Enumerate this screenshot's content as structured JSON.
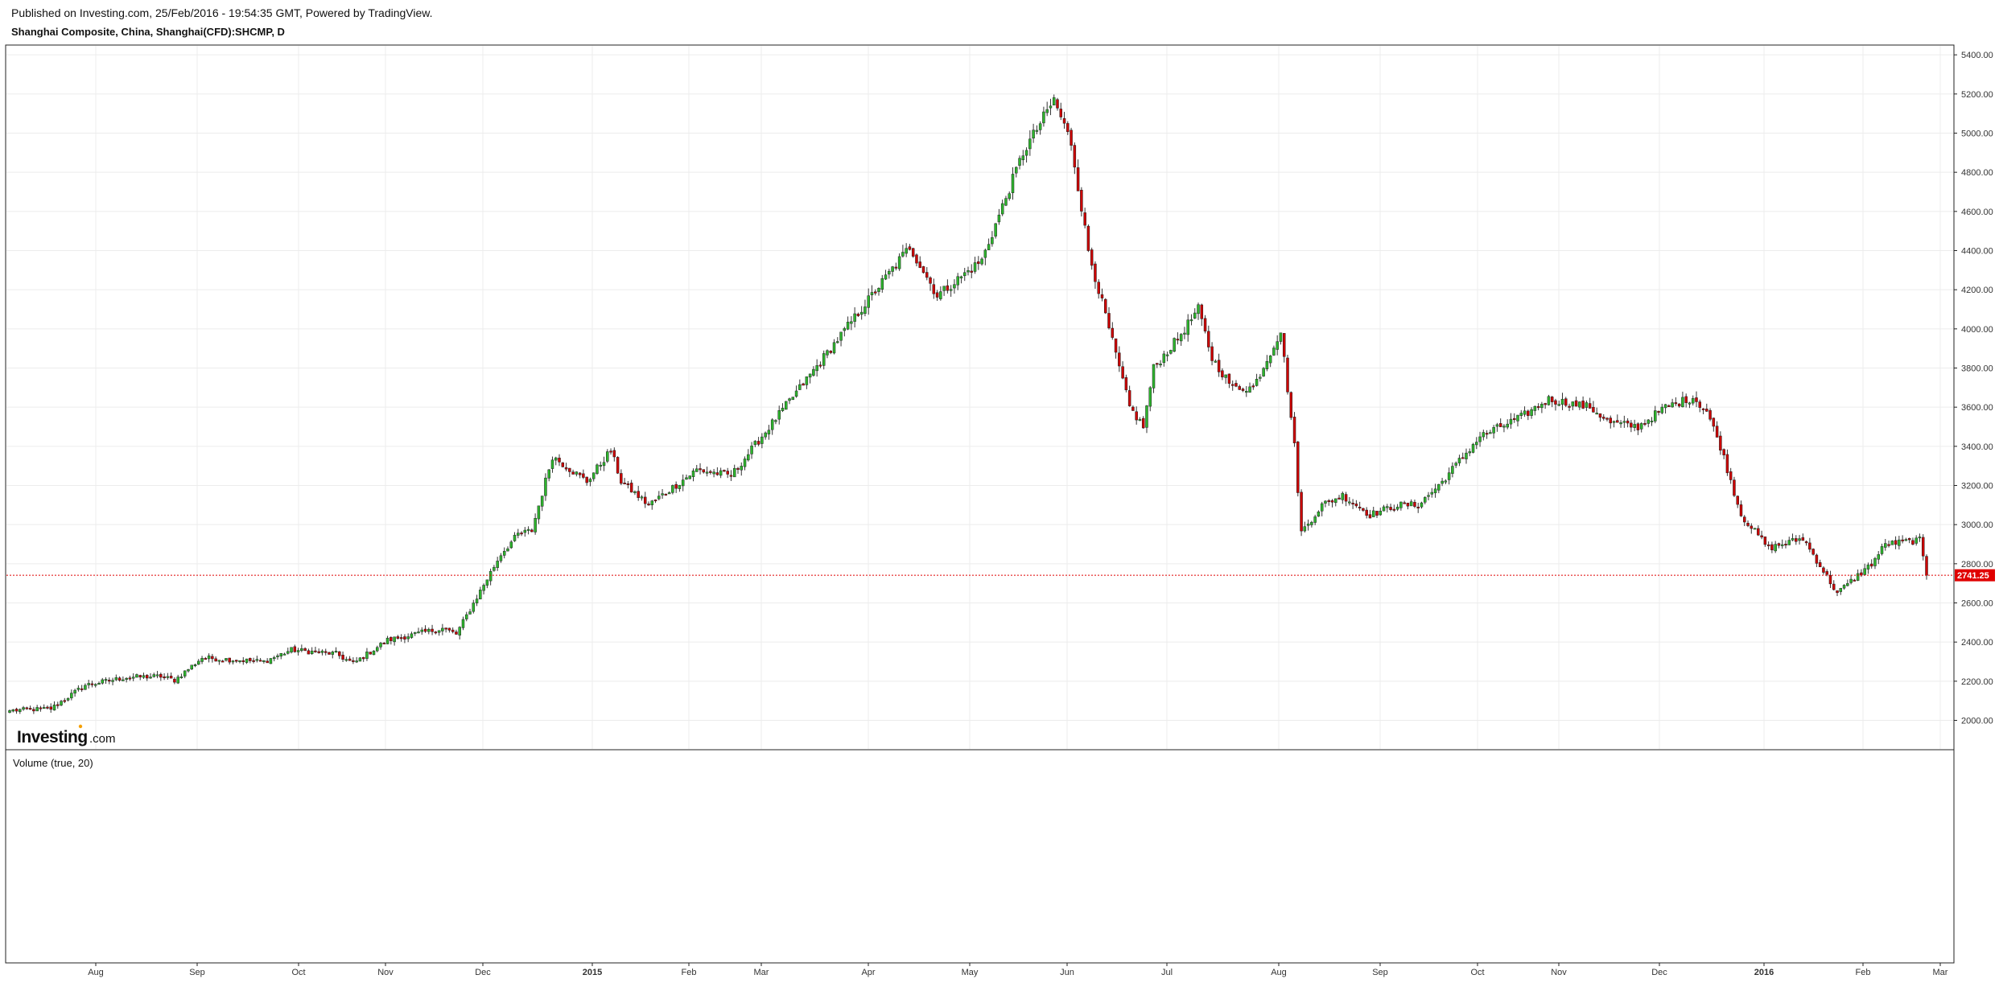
{
  "header": {
    "published": "Published on Investing.com, 25/Feb/2016 - 19:54:35 GMT, Powered by TradingView.",
    "symbol": "Shanghai Composite, China, Shanghai(CFD):SHCMP, D"
  },
  "logo": {
    "brand": "Investing",
    "suffix": ".com"
  },
  "volume_pane": {
    "title": "Volume (true, 20)"
  },
  "colors": {
    "up": "#2db52d",
    "down": "#cc0000",
    "last_line": "#e00000",
    "grid": "#ececec"
  },
  "chart_data": {
    "type": "candlestick",
    "title": "Shanghai Composite, China, Shanghai(CFD):SHCMP, D",
    "y_range": [
      1850,
      5450
    ],
    "y_ticks": [
      "2000.00",
      "2200.00",
      "2400.00",
      "2600.00",
      "2800.00",
      "3000.00",
      "3200.00",
      "3400.00",
      "3600.00",
      "3800.00",
      "4000.00",
      "4200.00",
      "4400.00",
      "4600.00",
      "4800.00",
      "5000.00",
      "5200.00",
      "5400.00"
    ],
    "x_ticks": [
      {
        "label": "Aug",
        "bold": false
      },
      {
        "label": "Sep",
        "bold": false
      },
      {
        "label": "Oct",
        "bold": false
      },
      {
        "label": "Nov",
        "bold": false
      },
      {
        "label": "Dec",
        "bold": false
      },
      {
        "label": "2015",
        "bold": true
      },
      {
        "label": "Feb",
        "bold": false
      },
      {
        "label": "Mar",
        "bold": false
      },
      {
        "label": "Apr",
        "bold": false
      },
      {
        "label": "May",
        "bold": false
      },
      {
        "label": "Jun",
        "bold": false
      },
      {
        "label": "Jul",
        "bold": false
      },
      {
        "label": "Aug",
        "bold": false
      },
      {
        "label": "Sep",
        "bold": false
      },
      {
        "label": "Oct",
        "bold": false
      },
      {
        "label": "Nov",
        "bold": false
      },
      {
        "label": "Dec",
        "bold": false
      },
      {
        "label": "2016",
        "bold": true
      },
      {
        "label": "Feb",
        "bold": false
      },
      {
        "label": "Mar",
        "bold": false
      }
    ],
    "last_price": "2741.25",
    "close_path": [
      [
        0,
        2050
      ],
      [
        12,
        2060
      ],
      [
        22,
        2180
      ],
      [
        34,
        2220
      ],
      [
        44,
        2225
      ],
      [
        48,
        2205
      ],
      [
        56,
        2320
      ],
      [
        74,
        2300
      ],
      [
        82,
        2360
      ],
      [
        95,
        2340
      ],
      [
        100,
        2290
      ],
      [
        110,
        2410
      ],
      [
        126,
        2470
      ],
      [
        130,
        2440
      ],
      [
        143,
        2850
      ],
      [
        148,
        2950
      ],
      [
        152,
        2970
      ],
      [
        158,
        3350
      ],
      [
        168,
        3220
      ],
      [
        175,
        3380
      ],
      [
        178,
        3220
      ],
      [
        186,
        3100
      ],
      [
        200,
        3280
      ],
      [
        210,
        3250
      ],
      [
        235,
        3810
      ],
      [
        262,
        4420
      ],
      [
        270,
        4170
      ],
      [
        283,
        4350
      ],
      [
        295,
        4900
      ],
      [
        304,
        5170
      ],
      [
        309,
        4950
      ],
      [
        314,
        4400
      ],
      [
        320,
        4000
      ],
      [
        326,
        3600
      ],
      [
        330,
        3500
      ],
      [
        333,
        3800
      ],
      [
        340,
        3950
      ],
      [
        346,
        4100
      ],
      [
        350,
        3850
      ],
      [
        356,
        3700
      ],
      [
        362,
        3700
      ],
      [
        370,
        3990
      ],
      [
        374,
        3400
      ],
      [
        376,
        2960
      ],
      [
        382,
        3100
      ],
      [
        388,
        3150
      ],
      [
        396,
        3050
      ],
      [
        404,
        3100
      ],
      [
        410,
        3100
      ],
      [
        416,
        3200
      ],
      [
        428,
        3450
      ],
      [
        440,
        3550
      ],
      [
        448,
        3640
      ],
      [
        460,
        3600
      ],
      [
        466,
        3520
      ],
      [
        474,
        3500
      ],
      [
        482,
        3600
      ],
      [
        490,
        3650
      ],
      [
        494,
        3580
      ],
      [
        498,
        3400
      ],
      [
        504,
        3050
      ],
      [
        512,
        2880
      ],
      [
        522,
        2930
      ],
      [
        532,
        2650
      ],
      [
        542,
        2800
      ],
      [
        546,
        2900
      ],
      [
        556,
        2920
      ],
      [
        558,
        2741
      ]
    ]
  }
}
